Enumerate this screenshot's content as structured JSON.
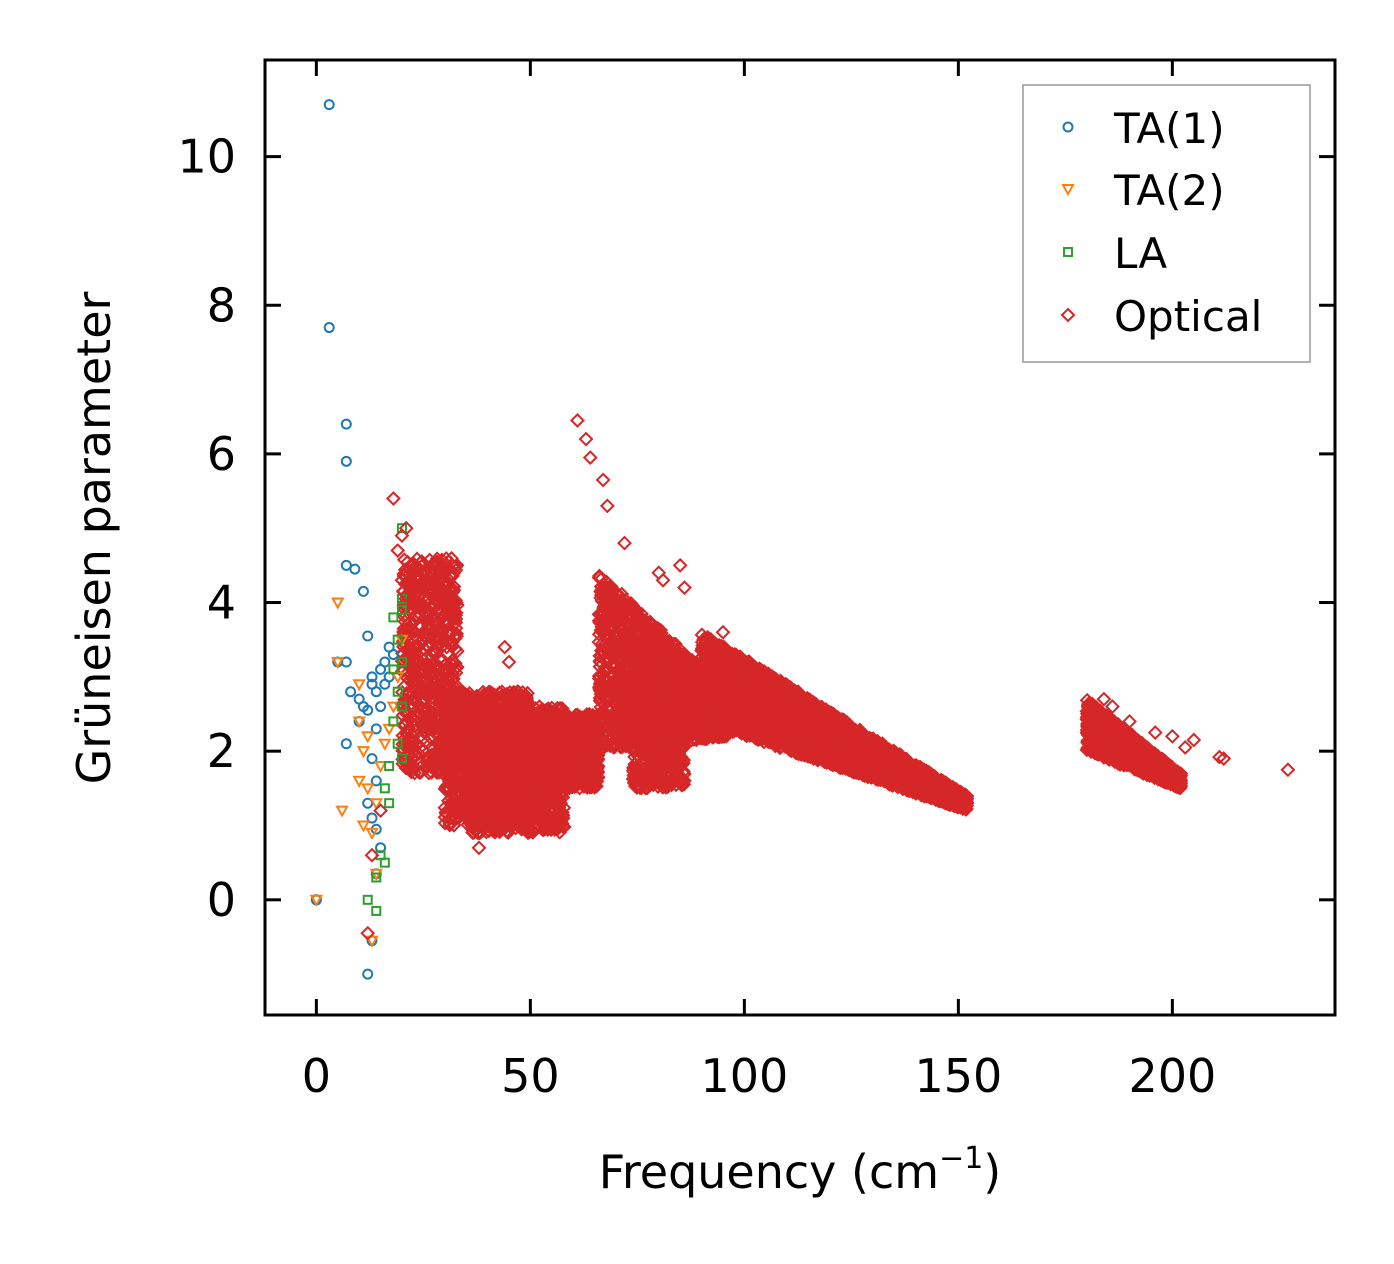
{
  "chart_data": {
    "type": "scatter",
    "title": "",
    "xlabel": "Frequency (cm",
    "xlabel_superscript": "−1",
    "xlabel_close": ")",
    "ylabel": "Grüneisen parameter",
    "xlim": [
      -12,
      238
    ],
    "ylim": [
      -1.55,
      11.3
    ],
    "xticks": [
      0,
      50,
      100,
      150,
      200
    ],
    "yticks": [
      0,
      2,
      4,
      6,
      8,
      10
    ],
    "legend_position": "top-right",
    "series": [
      {
        "name": "TA(1)",
        "marker": "circle",
        "color": "#1f77b4",
        "points": [
          [
            0,
            0
          ],
          [
            3,
            10.7
          ],
          [
            3,
            7.7
          ],
          [
            7,
            6.4
          ],
          [
            7,
            5.9
          ],
          [
            7,
            4.5
          ],
          [
            9,
            4.45
          ],
          [
            11,
            4.15
          ],
          [
            12,
            3.55
          ],
          [
            5,
            3.2
          ],
          [
            7,
            3.2
          ],
          [
            8,
            2.8
          ],
          [
            10,
            2.7
          ],
          [
            11,
            2.6
          ],
          [
            10,
            2.4
          ],
          [
            7,
            2.1
          ],
          [
            12,
            2.55
          ],
          [
            13,
            3.0
          ],
          [
            14,
            2.3
          ],
          [
            15,
            2.6
          ],
          [
            13,
            2.9
          ],
          [
            14,
            2.8
          ],
          [
            15,
            3.1
          ],
          [
            16,
            2.9
          ],
          [
            16,
            3.2
          ],
          [
            17,
            3.0
          ],
          [
            17,
            3.4
          ],
          [
            18,
            3.3
          ],
          [
            13,
            1.9
          ],
          [
            14,
            1.6
          ],
          [
            12,
            1.3
          ],
          [
            13,
            1.1
          ],
          [
            14,
            0.95
          ],
          [
            15,
            0.7
          ],
          [
            14,
            0.35
          ],
          [
            13,
            -0.55
          ],
          [
            12,
            -1.0
          ],
          [
            0,
            0
          ]
        ]
      },
      {
        "name": "TA(2)",
        "marker": "triangle-down",
        "color": "#ff7f0e",
        "points": [
          [
            5,
            4.0
          ],
          [
            5,
            3.2
          ],
          [
            10,
            2.9
          ],
          [
            10,
            2.4
          ],
          [
            11,
            2.0
          ],
          [
            10,
            1.6
          ],
          [
            12,
            1.5
          ],
          [
            6,
            1.2
          ],
          [
            11,
            1.0
          ],
          [
            13,
            0.9
          ],
          [
            14,
            1.3
          ],
          [
            15,
            1.8
          ],
          [
            16,
            2.1
          ],
          [
            17,
            2.3
          ],
          [
            18,
            2.6
          ],
          [
            19,
            3.0
          ],
          [
            20,
            3.5
          ],
          [
            12,
            2.2
          ],
          [
            13,
            -0.55
          ],
          [
            14,
            0.35
          ],
          [
            0,
            0
          ]
        ]
      },
      {
        "name": "LA",
        "marker": "square",
        "color": "#2ca02c",
        "points": [
          [
            20,
            4.05
          ],
          [
            20,
            3.9
          ],
          [
            19,
            3.5
          ],
          [
            20,
            3.2
          ],
          [
            18,
            3.1
          ],
          [
            19,
            2.8
          ],
          [
            20,
            2.6
          ],
          [
            18,
            2.4
          ],
          [
            19,
            2.1
          ],
          [
            20,
            1.9
          ],
          [
            17,
            1.8
          ],
          [
            16,
            1.5
          ],
          [
            17,
            1.3
          ],
          [
            15,
            0.6
          ],
          [
            16,
            0.5
          ],
          [
            14,
            0.3
          ],
          [
            12,
            0.0
          ],
          [
            14,
            -0.15
          ],
          [
            20,
            5.0
          ],
          [
            18,
            3.8
          ]
        ]
      },
      {
        "name": "Optical",
        "marker": "diamond",
        "color": "#d62728",
        "points": [
          [
            18,
            5.4
          ],
          [
            20,
            4.9
          ],
          [
            21,
            5.0
          ],
          [
            19,
            4.7
          ],
          [
            22,
            4.5
          ],
          [
            20,
            4.3
          ],
          [
            21,
            4.1
          ],
          [
            38,
            0.7
          ],
          [
            38,
            0.9
          ],
          [
            44,
            3.4
          ],
          [
            45,
            3.2
          ],
          [
            47,
            2.8
          ],
          [
            61,
            6.45
          ],
          [
            63,
            6.2
          ],
          [
            64,
            5.95
          ],
          [
            67,
            5.65
          ],
          [
            68,
            5.3
          ],
          [
            72,
            4.8
          ],
          [
            80,
            4.4
          ],
          [
            81,
            4.3
          ],
          [
            85,
            4.5
          ],
          [
            86,
            4.2
          ],
          [
            75,
            1.8
          ],
          [
            79,
            1.7
          ],
          [
            86,
            1.6
          ],
          [
            95,
            3.6
          ],
          [
            110,
            2.8
          ],
          [
            113,
            2.6
          ],
          [
            152,
            1.3
          ],
          [
            196,
            2.25
          ],
          [
            200,
            2.2
          ],
          [
            203,
            2.05
          ],
          [
            205,
            2.15
          ],
          [
            211,
            1.92
          ],
          [
            212,
            1.9
          ],
          [
            227,
            1.75
          ],
          [
            184,
            2.7
          ],
          [
            186,
            2.6
          ],
          [
            190,
            2.4
          ],
          [
            195,
            1.8
          ],
          [
            198,
            1.7
          ],
          [
            200,
            1.6
          ],
          [
            12,
            -0.45
          ],
          [
            13,
            0.6
          ],
          [
            15,
            1.2
          ]
        ]
      }
    ],
    "optical_clusters": [
      {
        "x": [
          20,
          33
        ],
        "y": [
          1.7,
          4.6
        ]
      },
      {
        "x": [
          30,
          50
        ],
        "y": [
          1.0,
          2.8
        ]
      },
      {
        "x": [
          36,
          58
        ],
        "y": [
          0.9,
          2.6
        ]
      },
      {
        "x": [
          50,
          66
        ],
        "y": [
          1.5,
          2.5
        ]
      },
      {
        "x": [
          66,
          96
        ],
        "y": [
          1.8,
          4.4
        ]
      },
      {
        "x": [
          74,
          86
        ],
        "y": [
          1.5,
          3.2
        ]
      },
      {
        "x": [
          90,
          152
        ],
        "y": [
          1.2,
          3.6
        ]
      },
      {
        "x": [
          180,
          202
        ],
        "y": [
          1.5,
          2.7
        ]
      }
    ]
  }
}
